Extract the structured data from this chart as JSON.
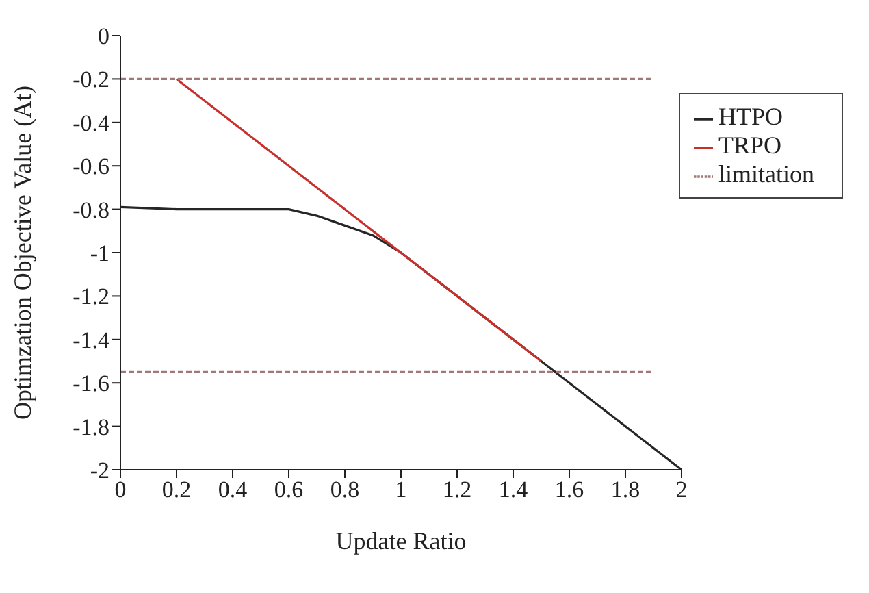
{
  "chart_data": {
    "type": "line",
    "xlabel": "Update Ratio",
    "ylabel": "Optimzation Objective Value (At)",
    "xlim": [
      0,
      2
    ],
    "xticks": [
      0,
      0.2,
      0.4,
      0.6,
      0.8,
      1,
      1.2,
      1.4,
      1.6,
      1.8,
      2
    ],
    "ylim": [
      -2,
      0
    ],
    "yticks": [
      -2,
      -1.8,
      -1.6,
      -1.4,
      -1.2,
      -1,
      -0.8,
      -0.6,
      -0.4,
      -0.2,
      0
    ],
    "grid": false,
    "legend": "top right",
    "marker": "none",
    "series": [
      {
        "name": "HTPO",
        "color": "#262626",
        "line_style": "solid",
        "x": [
          0,
          0.2,
          0.4,
          0.6,
          0.7,
          0.8,
          0.9,
          1,
          1.5,
          2
        ],
        "values": [
          -0.79,
          -0.8,
          -0.8,
          -0.8,
          -0.83,
          -0.875,
          -0.92,
          -1,
          -1.5,
          -2
        ]
      },
      {
        "name": "TRPO",
        "color": "#c8302c",
        "line_style": "solid",
        "x": [
          0.2,
          1.5
        ],
        "values": [
          -0.2,
          -1.5
        ]
      },
      {
        "name": "limitation",
        "color": "#a07878",
        "line_style": "dashed",
        "x": [
          0,
          1.9
        ],
        "values": [
          -0.2,
          -0.2
        ]
      },
      {
        "color": "#a07878",
        "line_style": "dashed",
        "x": [
          0,
          1.9
        ],
        "values": [
          -1.55,
          -1.55
        ]
      }
    ]
  }
}
